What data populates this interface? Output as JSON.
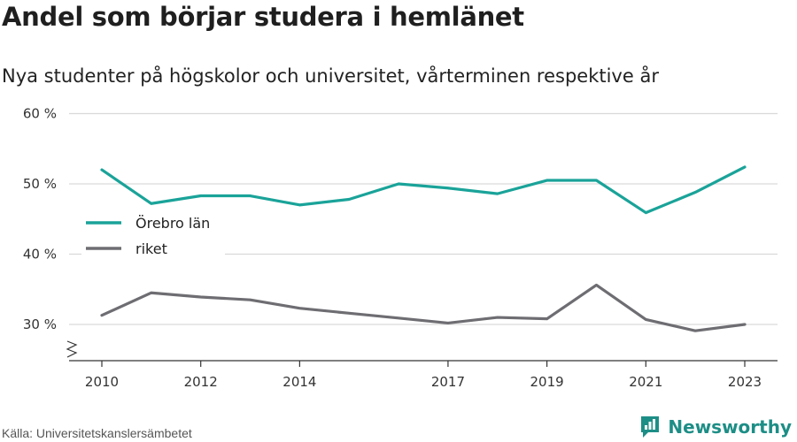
{
  "title": "Andel som börjar studera i hemlänet",
  "subtitle": "Nya studenter på högskolor och universitet, vårterminen respektive år",
  "source": "Källa: Universitetskanslersämbetet",
  "brand": "Newsworthy",
  "colors": {
    "orebro": "#1aa399",
    "riket": "#6e6d72",
    "grid": "#d9d9d9",
    "brand": "#1d8e86"
  },
  "chart_data": {
    "type": "line",
    "x": [
      2010,
      2011,
      2012,
      2013,
      2014,
      2015,
      2016,
      2017,
      2018,
      2019,
      2020,
      2021,
      2022,
      2023
    ],
    "xticks": [
      2010,
      2012,
      2014,
      2017,
      2019,
      2021,
      2023
    ],
    "yticks": [
      30,
      40,
      50,
      60
    ],
    "ytick_labels": [
      "30 %",
      "40 %",
      "50 %",
      "60 %"
    ],
    "ylim": [
      25,
      60
    ],
    "axis_break": true,
    "grid": true,
    "legend_position": "left",
    "series": [
      {
        "name": "Örebro län",
        "color": "#1aa399",
        "values": [
          52.0,
          47.2,
          48.3,
          48.3,
          47.0,
          47.8,
          50.0,
          49.4,
          48.6,
          50.5,
          50.5,
          45.9,
          48.8,
          52.4
        ]
      },
      {
        "name": "riket",
        "color": "#6e6d72",
        "values": [
          31.3,
          34.5,
          33.9,
          33.5,
          32.3,
          31.6,
          30.9,
          30.2,
          31.0,
          30.8,
          35.6,
          30.7,
          29.1,
          30.0
        ]
      }
    ]
  }
}
